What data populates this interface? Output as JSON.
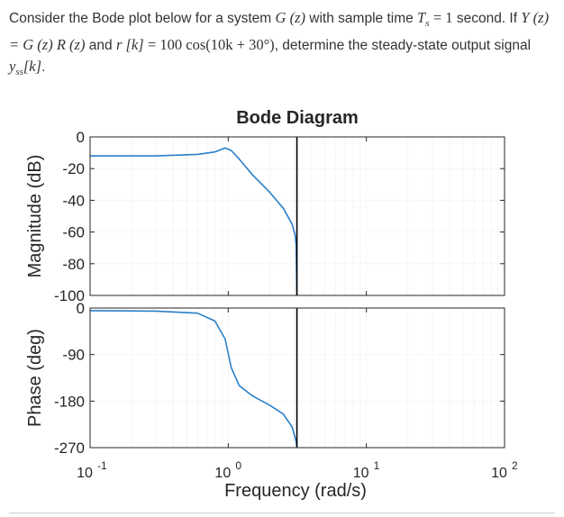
{
  "question": {
    "p1": "Consider the Bode plot below for a system",
    "p2": "with sample time",
    "p3": "second. If",
    "p4": "and",
    "p5": ", determine the steady-state output signal",
    "p6": ".",
    "sys": "G (z)",
    "ts_lhs": "T",
    "ts_sub": "s",
    "ts_rhs": "= 1",
    "eq_y": "Y (z) = G (z) R (z)",
    "eq_r_lhs": "r [k]",
    "eq_r_rhs": "= 100 cos(10k + 30°)",
    "yss_y": "y",
    "yss_sub": "ss",
    "yss_k": "[k]"
  },
  "chart_data": {
    "type": "line",
    "title": "Bode Diagram",
    "xlabel": "Frequency  (rad/s)",
    "xscale": "log",
    "xlim": [
      0.1,
      100
    ],
    "xticks": [
      {
        "value": 0.1,
        "base": "10",
        "exp": "-1"
      },
      {
        "value": 1,
        "base": "10",
        "exp": "0"
      },
      {
        "value": 10,
        "base": "10",
        "exp": "1"
      },
      {
        "value": 100,
        "base": "10",
        "exp": "2"
      }
    ],
    "nyquist_frequency": 3.1416,
    "grid": true,
    "line_color": "#2a7fc8",
    "magnitude": {
      "ylabel": "Magnitude (dB)",
      "ylim": [
        -100,
        0
      ],
      "yticks": [
        "0",
        "-20",
        "-40",
        "-60",
        "-80",
        "-100"
      ],
      "ytick_values": [
        0,
        -20,
        -40,
        -60,
        -80,
        -100
      ],
      "x": [
        0.1,
        0.3,
        0.6,
        0.8,
        0.95,
        1.05,
        1.2,
        1.5,
        2.0,
        2.5,
        2.9,
        3.05,
        3.1,
        3.14
      ],
      "y": [
        -12,
        -12,
        -11,
        -9.5,
        -7,
        -8.5,
        -14,
        -24,
        -35,
        -45,
        -55,
        -62,
        -68,
        -100
      ]
    },
    "phase": {
      "ylabel": "Phase (deg)",
      "ylim": [
        -270,
        0
      ],
      "yticks": [
        "0",
        "-90",
        "-180",
        "-270"
      ],
      "ytick_values": [
        0,
        -90,
        -180,
        -270
      ],
      "x": [
        0.1,
        0.3,
        0.6,
        0.8,
        0.95,
        1.05,
        1.2,
        1.5,
        2.0,
        2.5,
        2.9,
        3.1,
        3.14
      ],
      "y": [
        -5,
        -6,
        -10,
        -25,
        -60,
        -115,
        -150,
        -170,
        -188,
        -205,
        -230,
        -258,
        -270
      ]
    }
  }
}
